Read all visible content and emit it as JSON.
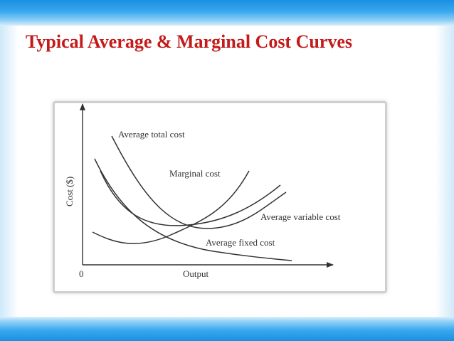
{
  "slide": {
    "title": "Typical Average & Marginal Cost Curves"
  },
  "figure": {
    "y_axis_label": "Cost ($)",
    "x_axis_label": "Output",
    "origin_label": "0",
    "curves": [
      {
        "id": "average-total-cost",
        "label": "Average total cost"
      },
      {
        "id": "marginal-cost",
        "label": "Marginal cost"
      },
      {
        "id": "average-variable-cost",
        "label": "Average variable cost"
      },
      {
        "id": "average-fixed-cost",
        "label": "Average fixed cost"
      }
    ]
  },
  "colors": {
    "title": "#c41a1a",
    "band": "#1a8fe0",
    "curve": "#333333"
  }
}
